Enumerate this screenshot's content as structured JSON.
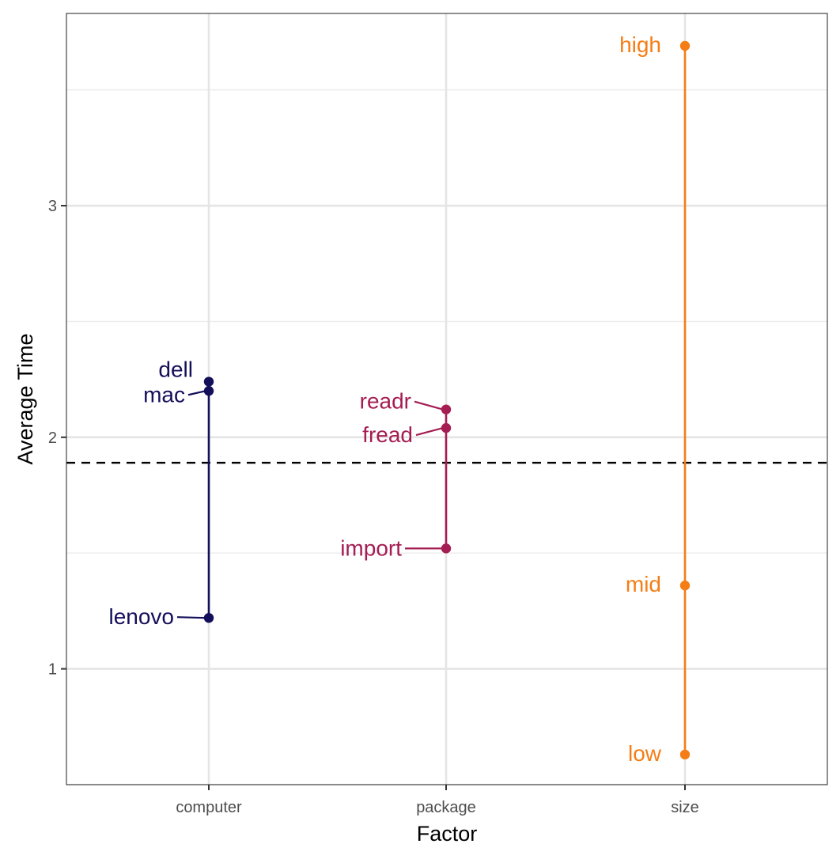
{
  "chart_data": {
    "type": "scatter",
    "xlabel": "Factor",
    "ylabel": "Average Time",
    "categories": [
      "computer",
      "package",
      "size"
    ],
    "ylim": [
      0.5,
      3.83
    ],
    "yticks": [
      1,
      2,
      3
    ],
    "grid": true,
    "reference_line": {
      "y": 1.89,
      "style": "dashed",
      "color": "#000000"
    },
    "series": [
      {
        "category": "computer",
        "color": "#140F5A",
        "points": [
          {
            "label": "dell",
            "y": 2.24
          },
          {
            "label": "mac",
            "y": 2.2
          },
          {
            "label": "lenovo",
            "y": 1.22
          }
        ]
      },
      {
        "category": "package",
        "color": "#A51D52",
        "points": [
          {
            "label": "readr",
            "y": 2.12
          },
          {
            "label": "fread",
            "y": 2.04
          },
          {
            "label": "import",
            "y": 1.52
          }
        ]
      },
      {
        "category": "size",
        "color": "#F57D15",
        "points": [
          {
            "label": "high",
            "y": 3.69
          },
          {
            "label": "mid",
            "y": 1.36
          },
          {
            "label": "low",
            "y": 0.63
          }
        ]
      }
    ]
  }
}
